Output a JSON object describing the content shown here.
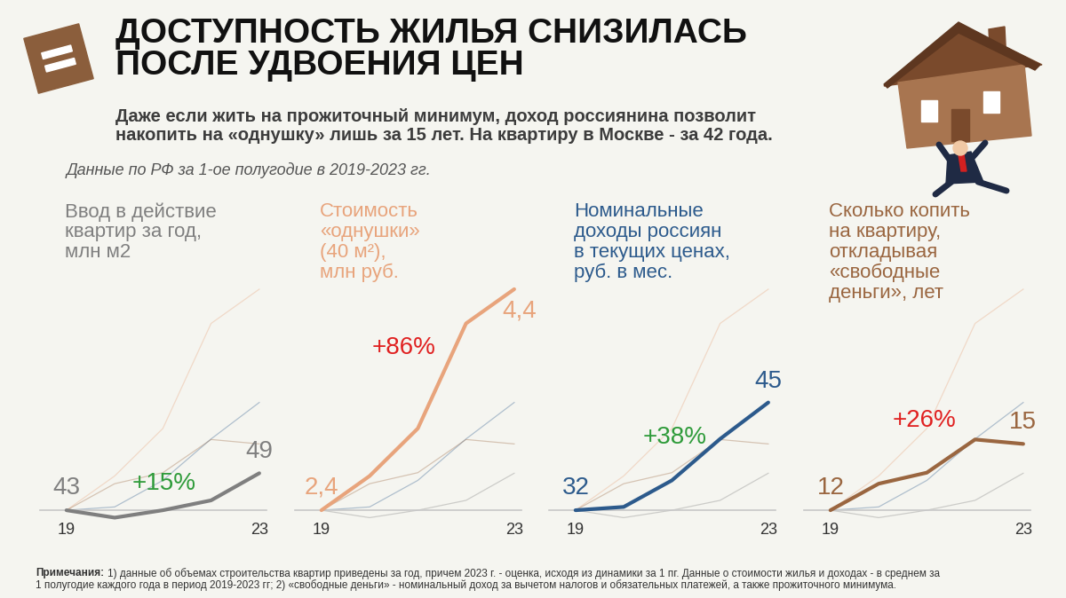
{
  "header": {
    "title": "ДОСТУПНОСТЬ ЖИЛЬЯ СНИЗИЛАСЬ\nПОСЛЕ УДВОЕНИЯ ЦЕН",
    "subtitle": "Даже если жить на прожиточный минимум, доход россиянина позволит\nнакопить на «однушку» лишь за 15 лет. На квартиру в Москве - за 42 года.",
    "period": "Данные по РФ за 1-ое полугодие в 2019-2023 гг."
  },
  "chart_data": [
    {
      "type": "line",
      "title": "Ввод в действие\nквартир за год,\nмлн м2",
      "x": [
        2019,
        2020,
        2021,
        2022,
        2023
      ],
      "values": [
        43,
        41.8,
        43.0,
        44.6,
        49
      ],
      "value_labels": [
        "43",
        null,
        null,
        null,
        "49"
      ],
      "data_labels": true,
      "color": "#7f7f7f",
      "xlim": [
        2018.45,
        2023.15
      ],
      "xticks": [
        {
          "value": 2019,
          "label": "19"
        },
        {
          "value": 2023,
          "label": "23"
        }
      ],
      "ylim": [
        39.56,
        81.7
      ],
      "tick_labels": "x",
      "annotations": [
        {
          "text": "+15%",
          "color": "#2e9b3a"
        }
      ]
    },
    {
      "type": "line",
      "title": "Стоимость\n«однушки»\n(40 м²),\nмлн руб.",
      "x": [
        2019,
        2020,
        2021,
        2022,
        2023
      ],
      "values": [
        2.4,
        2.71,
        3.14,
        4.09,
        4.4
      ],
      "value_labels": [
        "2,4",
        null,
        null,
        null,
        "4,4"
      ],
      "data_labels": true,
      "color": "#e8a47c",
      "xlim": [
        2018.45,
        2023.15
      ],
      "xticks": [
        {
          "value": 2019,
          "label": "19"
        },
        {
          "value": 2023,
          "label": "23"
        }
      ],
      "ylim": [
        2.208,
        4.56
      ],
      "tick_labels": "x",
      "annotations": [
        {
          "text": "+86%",
          "color": "#e02020"
        }
      ]
    },
    {
      "type": "line",
      "title": "Номинальные\nдоходы россиян\nв текущих ценах,\nруб. в мес.",
      "x": [
        2019,
        2020,
        2021,
        2022,
        2023
      ],
      "values": [
        32,
        32.4,
        35.6,
        40.6,
        45
      ],
      "value_labels": [
        "32",
        null,
        null,
        null,
        "45"
      ],
      "data_labels": true,
      "color": "#2c5a8c",
      "xlim": [
        2018.45,
        2023.15
      ],
      "xticks": [
        {
          "value": 2019,
          "label": "19"
        },
        {
          "value": 2023,
          "label": "23"
        }
      ],
      "ylim": [
        29.44,
        60.8
      ],
      "tick_labels": "x",
      "annotations": [
        {
          "text": "+38%",
          "color": "#2e9b3a"
        }
      ]
    },
    {
      "type": "line",
      "title": "Сколько копить\nна квартиру,\nоткладывая\n«свободные\nденьги», лет",
      "x": [
        2019,
        2020,
        2021,
        2022,
        2023
      ],
      "values": [
        12,
        13.2,
        13.7,
        15.2,
        15
      ],
      "value_labels": [
        "12",
        null,
        null,
        null,
        "15"
      ],
      "data_labels": true,
      "color": "#9a6640",
      "xlim": [
        2018.45,
        2023.15
      ],
      "xticks": [
        {
          "value": 2019,
          "label": "19"
        },
        {
          "value": 2023,
          "label": "23"
        }
      ],
      "ylim": [
        11.04,
        22.8
      ],
      "tick_labels": "x",
      "annotations": [
        {
          "text": "+26%",
          "color": "#e02020"
        }
      ]
    }
  ],
  "note": {
    "label": "Примечания:",
    "text": "1) данные об объемах строительства квартир приведены за год, причем 2023 г. - оценка, исходя из динамики за 1 пг. Данные о стоимости жилья и доходах - в среднем за\n1 полугодие каждого года в период 2019-2023 гг; 2) «свободные деньги» - номинальный доход за вычетом налогов и обязательных платежей, а также прожиточного минимума."
  }
}
